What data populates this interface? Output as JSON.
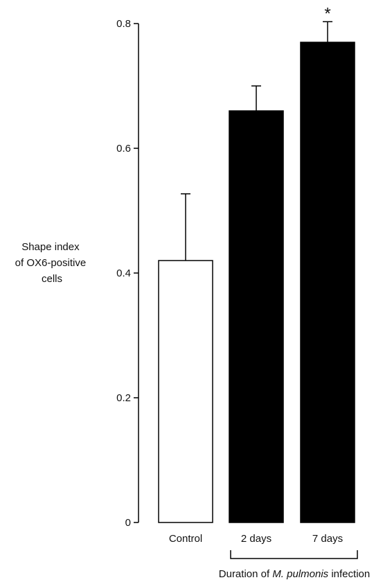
{
  "chart_data": {
    "type": "bar",
    "categories": [
      "Control",
      "2 days",
      "7 days"
    ],
    "values": [
      0.42,
      0.66,
      0.77
    ],
    "errors": [
      0.107,
      0.04,
      0.033
    ],
    "bar_colors": [
      "#ffffff",
      "#000000",
      "#000000"
    ],
    "ylim": [
      0,
      0.8
    ],
    "yticks": [
      0,
      0.2,
      0.4,
      0.6,
      0.8
    ],
    "ytick_labels": [
      "0",
      "0.2",
      "0.4",
      "0.6",
      "0.8"
    ],
    "ylabel_lines": [
      "Shape index",
      "of OX6-positive",
      "cells"
    ],
    "xlabel": {
      "prefix": "Duration of ",
      "italic": "M. pulmonis",
      "suffix": " infection"
    },
    "significance": [
      {
        "category": "7 days",
        "marker": "*"
      }
    ],
    "bracket_categories": [
      "2 days",
      "7 days"
    ],
    "grid": false
  }
}
